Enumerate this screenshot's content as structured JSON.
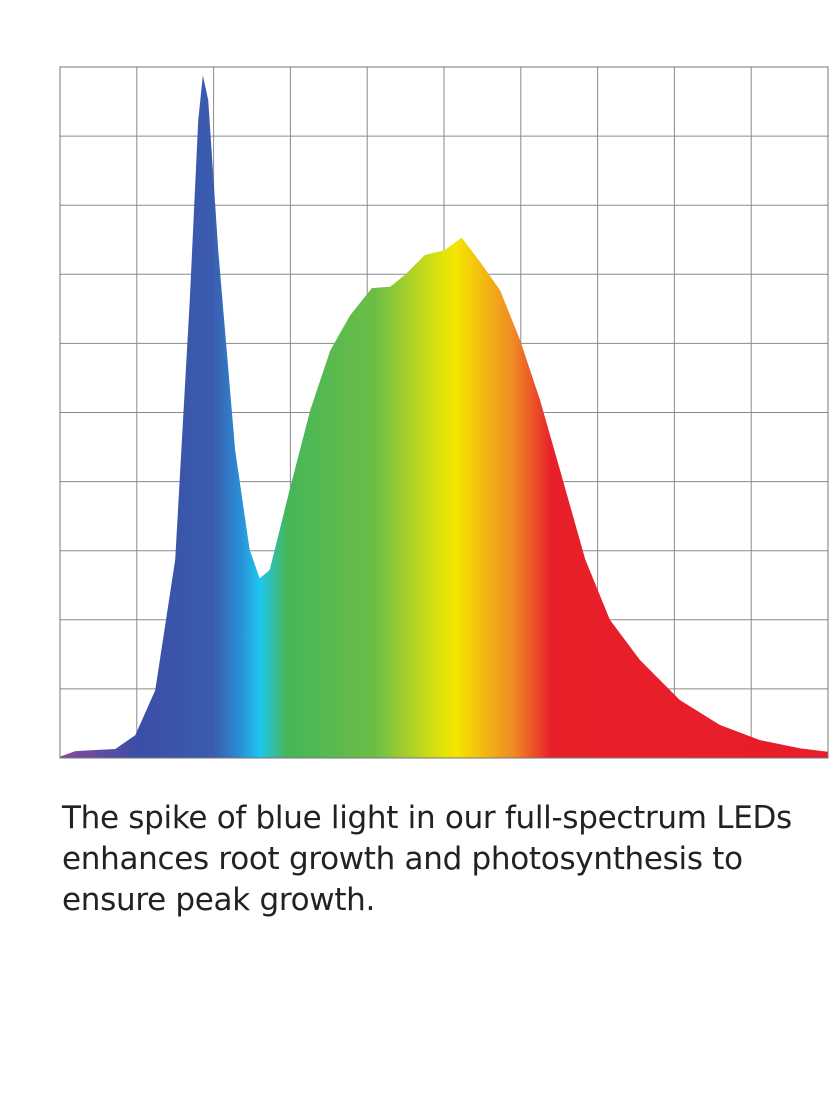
{
  "chart_data": {
    "type": "area",
    "x": [
      0,
      0.2,
      0.72,
      0.98,
      1.24,
      1.5,
      1.69,
      1.8,
      1.86,
      1.93,
      2.06,
      2.28,
      2.47,
      2.6,
      2.73,
      2.99,
      3.26,
      3.52,
      3.78,
      4.06,
      4.3,
      4.49,
      4.75,
      5.01,
      5.23,
      5.47,
      5.73,
      5.99,
      6.25,
      6.51,
      6.84,
      7.16,
      7.55,
      8.07,
      8.59,
      9.11,
      9.64,
      10
    ],
    "values": [
      0.02,
      0.1,
      0.13,
      0.33,
      0.98,
      2.87,
      6.63,
      9.23,
      9.88,
      9.52,
      7.35,
      4.46,
      3.01,
      2.6,
      2.72,
      3.88,
      5.04,
      5.9,
      6.41,
      6.8,
      6.82,
      6.99,
      7.28,
      7.35,
      7.53,
      7.18,
      6.77,
      6.05,
      5.18,
      4.17,
      2.87,
      2.0,
      1.42,
      0.84,
      0.48,
      0.26,
      0.14,
      0.09
    ],
    "color_stops": [
      {
        "x": 0,
        "color": "#8a4a9e"
      },
      {
        "x": 1.0,
        "color": "#3b4ea6"
      },
      {
        "x": 2.0,
        "color": "#3a5cae"
      },
      {
        "x": 2.35,
        "color": "#2a8fd8"
      },
      {
        "x": 2.6,
        "color": "#1ec6f0"
      },
      {
        "x": 2.95,
        "color": "#45b659"
      },
      {
        "x": 4.1,
        "color": "#6cbd45"
      },
      {
        "x": 4.9,
        "color": "#d8e010"
      },
      {
        "x": 5.15,
        "color": "#f5e600"
      },
      {
        "x": 5.9,
        "color": "#f08a24"
      },
      {
        "x": 6.4,
        "color": "#e8202a"
      },
      {
        "x": 10,
        "color": "#e81c2a"
      }
    ],
    "xlim": [
      0,
      10
    ],
    "ylim": [
      0,
      10
    ],
    "xticks": [
      0,
      1,
      2,
      3,
      4,
      5,
      6,
      7,
      8,
      9,
      10
    ],
    "yticks": [
      0,
      1,
      2,
      3,
      4,
      5,
      6,
      7,
      8,
      9,
      10
    ],
    "grid": true
  },
  "caption": [
    "The spike of blue light in our full-spectrum LEDs",
    "enhances root growth and photosynthesis to",
    "ensure peak growth."
  ]
}
